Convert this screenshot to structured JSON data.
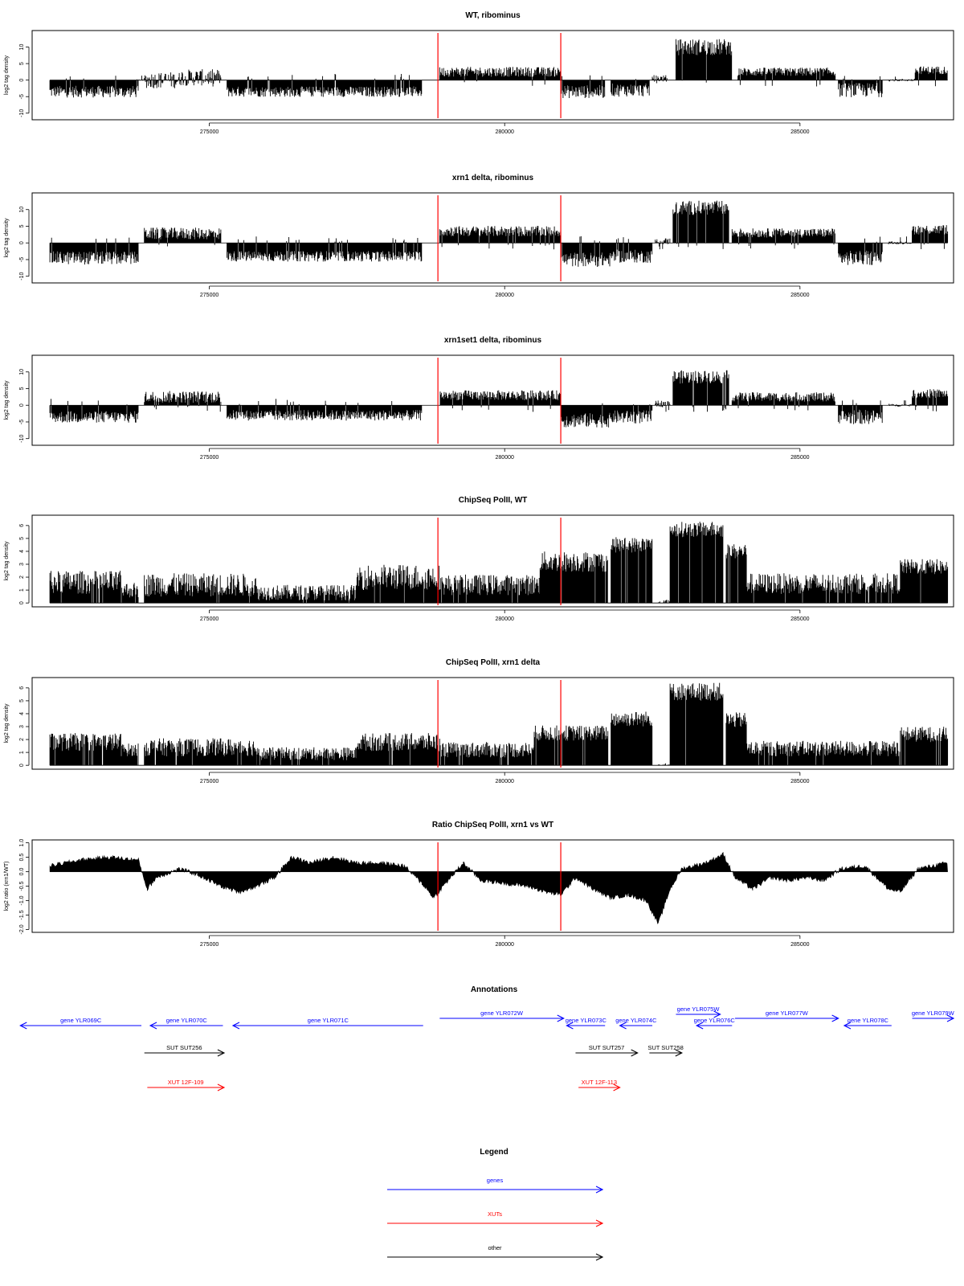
{
  "colors": {
    "genes": "#0000ff",
    "xuts": "#ff0000",
    "other": "#000000",
    "markers": "#ff0000",
    "signal": "#000000"
  },
  "chart_data": [
    {
      "type": "bar",
      "title": "WT, ribominus",
      "ylabel": "log2 tag density",
      "xlim": [
        272000,
        287600
      ],
      "ylim": [
        -12,
        15
      ],
      "yticks": [
        -10,
        -5,
        0,
        5,
        10
      ],
      "xticks": [
        275000,
        280000,
        285000
      ],
      "xtick_labels": [
        "275000",
        "280000",
        "285000"
      ],
      "ytick_labels": [
        "-10",
        "-5",
        "0",
        "5",
        "10"
      ],
      "markers_x": [
        278870,
        280950
      ],
      "segments": [
        {
          "x": [
            272300,
            273800
          ],
          "y": -3.5,
          "amp": 1.8
        },
        {
          "x": [
            273800,
            273900
          ],
          "y": 0,
          "amp": 0.2
        },
        {
          "x": [
            273900,
            274500
          ],
          "y": 0,
          "amp": 2.5
        },
        {
          "x": [
            274500,
            275200
          ],
          "y": 0.8,
          "amp": 2.5
        },
        {
          "x": [
            275300,
            278600
          ],
          "y": -3.5,
          "amp": 1.6
        },
        {
          "x": [
            278900,
            280950
          ],
          "y": 2.5,
          "amp": 1.5
        },
        {
          "x": [
            280950,
            281700
          ],
          "y": -3.5,
          "amp": 2.0
        },
        {
          "x": [
            281800,
            282450
          ],
          "y": -3.0,
          "amp": 2.0
        },
        {
          "x": [
            282500,
            282750
          ],
          "y": 0.5,
          "amp": 1.0
        },
        {
          "x": [
            282900,
            283850
          ],
          "y": 10,
          "amp": 2.5
        },
        {
          "x": [
            283950,
            285600
          ],
          "y": 2.5,
          "amp": 1.3
        },
        {
          "x": [
            285650,
            286400
          ],
          "y": -3.0,
          "amp": 2.2
        },
        {
          "x": [
            286500,
            286950
          ],
          "y": 0,
          "amp": 0.4
        },
        {
          "x": [
            286950,
            287500
          ],
          "y": 3.0,
          "amp": 1.2
        }
      ]
    },
    {
      "type": "bar",
      "title": "xrn1 delta, ribominus",
      "ylabel": "log2 tag density",
      "xlim": [
        272000,
        287600
      ],
      "ylim": [
        -12,
        15
      ],
      "yticks": [
        -10,
        -5,
        0,
        5,
        10
      ],
      "xticks": [
        275000,
        280000,
        285000
      ],
      "xtick_labels": [
        "275000",
        "280000",
        "285000"
      ],
      "ytick_labels": [
        "-10",
        "-5",
        "0",
        "5",
        "10"
      ],
      "markers_x": [
        278870,
        280950
      ],
      "segments": [
        {
          "x": [
            272300,
            273800
          ],
          "y": -4.5,
          "amp": 2.0
        },
        {
          "x": [
            273900,
            275200
          ],
          "y": 2.8,
          "amp": 1.8
        },
        {
          "x": [
            275300,
            278600
          ],
          "y": -4.0,
          "amp": 1.6
        },
        {
          "x": [
            278900,
            280950
          ],
          "y": 3.5,
          "amp": 1.6
        },
        {
          "x": [
            280950,
            281800
          ],
          "y": -5.0,
          "amp": 2.2
        },
        {
          "x": [
            281800,
            282500
          ],
          "y": -4.0,
          "amp": 2.0
        },
        {
          "x": [
            282550,
            282800
          ],
          "y": 0.5,
          "amp": 1.0
        },
        {
          "x": [
            282850,
            283800
          ],
          "y": 10.5,
          "amp": 2.2
        },
        {
          "x": [
            283850,
            285600
          ],
          "y": 3.0,
          "amp": 1.4
        },
        {
          "x": [
            285650,
            286400
          ],
          "y": -4.5,
          "amp": 2.2
        },
        {
          "x": [
            286500,
            286900
          ],
          "y": 0,
          "amp": 0.4
        },
        {
          "x": [
            286900,
            287500
          ],
          "y": 4.0,
          "amp": 1.5
        }
      ]
    },
    {
      "type": "bar",
      "title": "xrn1set1 delta, ribominus",
      "ylabel": "log2 tag density",
      "xlim": [
        272000,
        287600
      ],
      "ylim": [
        -12,
        15
      ],
      "yticks": [
        -10,
        -5,
        0,
        5,
        10
      ],
      "xticks": [
        275000,
        280000,
        285000
      ],
      "xtick_labels": [
        "275000",
        "280000",
        "285000"
      ],
      "ytick_labels": [
        "-10",
        "-5",
        "0",
        "5",
        "10"
      ],
      "markers_x": [
        278870,
        280950
      ],
      "segments": [
        {
          "x": [
            272300,
            273800
          ],
          "y": -3.5,
          "amp": 1.8
        },
        {
          "x": [
            273900,
            275200
          ],
          "y": 2.5,
          "amp": 1.8
        },
        {
          "x": [
            275300,
            278600
          ],
          "y": -3.0,
          "amp": 1.6
        },
        {
          "x": [
            278900,
            280950
          ],
          "y": 3.0,
          "amp": 1.5
        },
        {
          "x": [
            280950,
            281800
          ],
          "y": -4.5,
          "amp": 2.2
        },
        {
          "x": [
            281800,
            282500
          ],
          "y": -3.5,
          "amp": 2.0
        },
        {
          "x": [
            282550,
            282800
          ],
          "y": 0.5,
          "amp": 1.0
        },
        {
          "x": [
            282850,
            283800
          ],
          "y": 8.5,
          "amp": 2.0
        },
        {
          "x": [
            283850,
            285600
          ],
          "y": 2.5,
          "amp": 1.4
        },
        {
          "x": [
            285650,
            286400
          ],
          "y": -3.5,
          "amp": 2.2
        },
        {
          "x": [
            286500,
            286900
          ],
          "y": 0,
          "amp": 0.4
        },
        {
          "x": [
            286900,
            287500
          ],
          "y": 3.5,
          "amp": 1.4
        }
      ]
    },
    {
      "type": "bar",
      "title": "ChipSeq PolII, WT",
      "ylabel": "log2 tag density",
      "xlim": [
        272000,
        287600
      ],
      "ylim": [
        -0.3,
        6.8
      ],
      "yticks": [
        0,
        1,
        2,
        3,
        4,
        5,
        6
      ],
      "xticks": [
        275000,
        280000,
        285000
      ],
      "xtick_labels": [
        "275000",
        "280000",
        "285000"
      ],
      "ytick_labels": [
        "0",
        "1",
        "2",
        "3",
        "4",
        "5",
        "6"
      ],
      "markers_x": [
        278870,
        280950
      ],
      "segments": [
        {
          "x": [
            272300,
            273500
          ],
          "y": 1.6,
          "amp": 0.9
        },
        {
          "x": [
            273500,
            273800
          ],
          "y": 1.0,
          "amp": 0.6
        },
        {
          "x": [
            273900,
            275800
          ],
          "y": 1.4,
          "amp": 0.9
        },
        {
          "x": [
            275800,
            277500
          ],
          "y": 0.8,
          "amp": 0.6
        },
        {
          "x": [
            277500,
            278900
          ],
          "y": 2.0,
          "amp": 1.0
        },
        {
          "x": [
            278900,
            280600
          ],
          "y": 1.4,
          "amp": 0.8
        },
        {
          "x": [
            280600,
            281750
          ],
          "y": 3.2,
          "amp": 0.8
        },
        {
          "x": [
            281800,
            282500
          ],
          "y": 4.5,
          "amp": 0.6
        },
        {
          "x": [
            282600,
            282800
          ],
          "y": 0.5,
          "amp": 0.3
        },
        {
          "x": [
            282800,
            283700
          ],
          "y": 5.7,
          "amp": 0.6
        },
        {
          "x": [
            283750,
            284100
          ],
          "y": 4.0,
          "amp": 0.6
        },
        {
          "x": [
            284100,
            286700
          ],
          "y": 1.5,
          "amp": 0.8
        },
        {
          "x": [
            286700,
            287500
          ],
          "y": 2.8,
          "amp": 0.6
        }
      ]
    },
    {
      "type": "bar",
      "title": "ChipSeq PolII, xrn1 delta",
      "ylabel": "log2 tag density",
      "xlim": [
        272000,
        287600
      ],
      "ylim": [
        -0.3,
        6.8
      ],
      "yticks": [
        0,
        1,
        2,
        3,
        4,
        5,
        6
      ],
      "xticks": [
        275000,
        280000,
        285000
      ],
      "xtick_labels": [
        "275000",
        "280000",
        "285000"
      ],
      "ytick_labels": [
        "0",
        "1",
        "2",
        "3",
        "4",
        "5",
        "6"
      ],
      "markers_x": [
        278870,
        280950
      ],
      "segments": [
        {
          "x": [
            272300,
            273500
          ],
          "y": 1.8,
          "amp": 0.7
        },
        {
          "x": [
            273500,
            273800
          ],
          "y": 1.2,
          "amp": 0.5
        },
        {
          "x": [
            273900,
            275800
          ],
          "y": 1.4,
          "amp": 0.7
        },
        {
          "x": [
            275800,
            277500
          ],
          "y": 0.9,
          "amp": 0.5
        },
        {
          "x": [
            277500,
            278900
          ],
          "y": 1.8,
          "amp": 0.7
        },
        {
          "x": [
            278900,
            280500
          ],
          "y": 1.2,
          "amp": 0.6
        },
        {
          "x": [
            280500,
            281750
          ],
          "y": 2.5,
          "amp": 0.6
        },
        {
          "x": [
            281800,
            282500
          ],
          "y": 3.6,
          "amp": 0.6
        },
        {
          "x": [
            282600,
            282800
          ],
          "y": 0.4,
          "amp": 0.3
        },
        {
          "x": [
            282800,
            283700
          ],
          "y": 5.7,
          "amp": 0.7
        },
        {
          "x": [
            283750,
            284100
          ],
          "y": 3.5,
          "amp": 0.6
        },
        {
          "x": [
            284100,
            286700
          ],
          "y": 1.3,
          "amp": 0.6
        },
        {
          "x": [
            286700,
            287500
          ],
          "y": 2.4,
          "amp": 0.6
        }
      ]
    },
    {
      "type": "area",
      "title": "Ratio ChipSeq PolII, xrn1 vs WT",
      "ylabel": "log2 ratio (xrn1/WT)",
      "xlim": [
        272000,
        287600
      ],
      "ylim": [
        -2.1,
        1.1
      ],
      "yticks": [
        -2,
        -1.5,
        -1,
        -0.5,
        0,
        0.5,
        1
      ],
      "xticks": [
        275000,
        280000,
        285000
      ],
      "xtick_labels": [
        "275000",
        "280000",
        "285000"
      ],
      "ytick_labels": [
        "-2.0",
        "-1.5",
        "-1.0",
        "-0.5",
        "0.0",
        "0.5",
        "1.0"
      ],
      "markers_x": [
        278870,
        280950
      ],
      "points": [
        [
          272300,
          0.2
        ],
        [
          272800,
          0.4
        ],
        [
          273300,
          0.5
        ],
        [
          273800,
          0.4
        ],
        [
          273950,
          -0.6
        ],
        [
          274100,
          -0.2
        ],
        [
          274500,
          0.1
        ],
        [
          274800,
          -0.1
        ],
        [
          275200,
          -0.5
        ],
        [
          275500,
          -0.7
        ],
        [
          275800,
          -0.5
        ],
        [
          276100,
          -0.2
        ],
        [
          276400,
          0.5
        ],
        [
          276700,
          0.3
        ],
        [
          277100,
          0.5
        ],
        [
          277500,
          0.3
        ],
        [
          277900,
          0.3
        ],
        [
          278300,
          0.2
        ],
        [
          278600,
          -0.4
        ],
        [
          278800,
          -0.9
        ],
        [
          279000,
          -0.4
        ],
        [
          279300,
          0.3
        ],
        [
          279600,
          -0.3
        ],
        [
          280000,
          -0.4
        ],
        [
          280400,
          -0.5
        ],
        [
          280700,
          -0.7
        ],
        [
          280950,
          -0.8
        ],
        [
          281200,
          -0.2
        ],
        [
          281500,
          -0.6
        ],
        [
          281800,
          -0.9
        ],
        [
          282100,
          -0.8
        ],
        [
          282400,
          -1.0
        ],
        [
          282600,
          -1.8
        ],
        [
          282800,
          -0.6
        ],
        [
          283000,
          0.1
        ],
        [
          283400,
          0.3
        ],
        [
          283700,
          0.6
        ],
        [
          283900,
          -0.2
        ],
        [
          284200,
          -0.6
        ],
        [
          284500,
          -0.2
        ],
        [
          284800,
          -0.3
        ],
        [
          285100,
          -0.2
        ],
        [
          285400,
          -0.3
        ],
        [
          285700,
          0.1
        ],
        [
          286100,
          0.2
        ],
        [
          286500,
          -0.6
        ],
        [
          286700,
          -0.7
        ],
        [
          287000,
          0.1
        ],
        [
          287500,
          0.3
        ]
      ]
    }
  ],
  "annotations": {
    "title": "Annotations",
    "xlim": [
      272000,
      287600
    ],
    "items": [
      {
        "label": "gene YLR069C",
        "kind": "genes",
        "x": [
          271800,
          273850
        ],
        "dir": -1,
        "row": 1
      },
      {
        "label": "gene YLR070C",
        "kind": "genes",
        "x": [
          274000,
          275230
        ],
        "dir": -1,
        "row": 1
      },
      {
        "label": "gene YLR071C",
        "kind": "genes",
        "x": [
          275400,
          278620
        ],
        "dir": -1,
        "row": 1
      },
      {
        "label": "gene YLR072W",
        "kind": "genes",
        "x": [
          278900,
          281000
        ],
        "dir": 1,
        "row": 0
      },
      {
        "label": "gene YLR073C",
        "kind": "genes",
        "x": [
          281050,
          281700
        ],
        "dir": -1,
        "row": 1
      },
      {
        "label": "gene YLR074C",
        "kind": "genes",
        "x": [
          281950,
          282500
        ],
        "dir": -1,
        "row": 1
      },
      {
        "label": "gene YLR075W",
        "kind": "genes",
        "x": [
          282900,
          283650
        ],
        "dir": 1,
        "row": -1
      },
      {
        "label": "gene YLR076C",
        "kind": "genes",
        "x": [
          283250,
          283850
        ],
        "dir": -1,
        "row": 1
      },
      {
        "label": "gene YLR077W",
        "kind": "genes",
        "x": [
          283900,
          285650
        ],
        "dir": 1,
        "row": 0
      },
      {
        "label": "gene YLR078C",
        "kind": "genes",
        "x": [
          285750,
          286550
        ],
        "dir": -1,
        "row": 1
      },
      {
        "label": "gene YLR079W",
        "kind": "genes",
        "x": [
          286900,
          287600
        ],
        "dir": 1,
        "row": 0
      },
      {
        "label": "SUT SUT256",
        "kind": "other",
        "x": [
          273900,
          275250
        ],
        "dir": 1,
        "row": 2
      },
      {
        "label": "SUT SUT257",
        "kind": "other",
        "x": [
          281200,
          282250
        ],
        "dir": 1,
        "row": 2
      },
      {
        "label": "SUT SUT258",
        "kind": "other",
        "x": [
          282450,
          283000
        ],
        "dir": 1,
        "row": 2
      },
      {
        "label": "XUT 12F-109",
        "kind": "xuts",
        "x": [
          273950,
          275250
        ],
        "dir": 1,
        "row": 3
      },
      {
        "label": "XUT 12F-113",
        "kind": "xuts",
        "x": [
          281250,
          281950
        ],
        "dir": 1,
        "row": 3
      }
    ]
  },
  "legend": {
    "title": "Legend",
    "items": [
      {
        "label": "genes",
        "kind": "genes"
      },
      {
        "label": "XUTs",
        "kind": "xuts"
      },
      {
        "label": "other",
        "kind": "other"
      }
    ]
  }
}
